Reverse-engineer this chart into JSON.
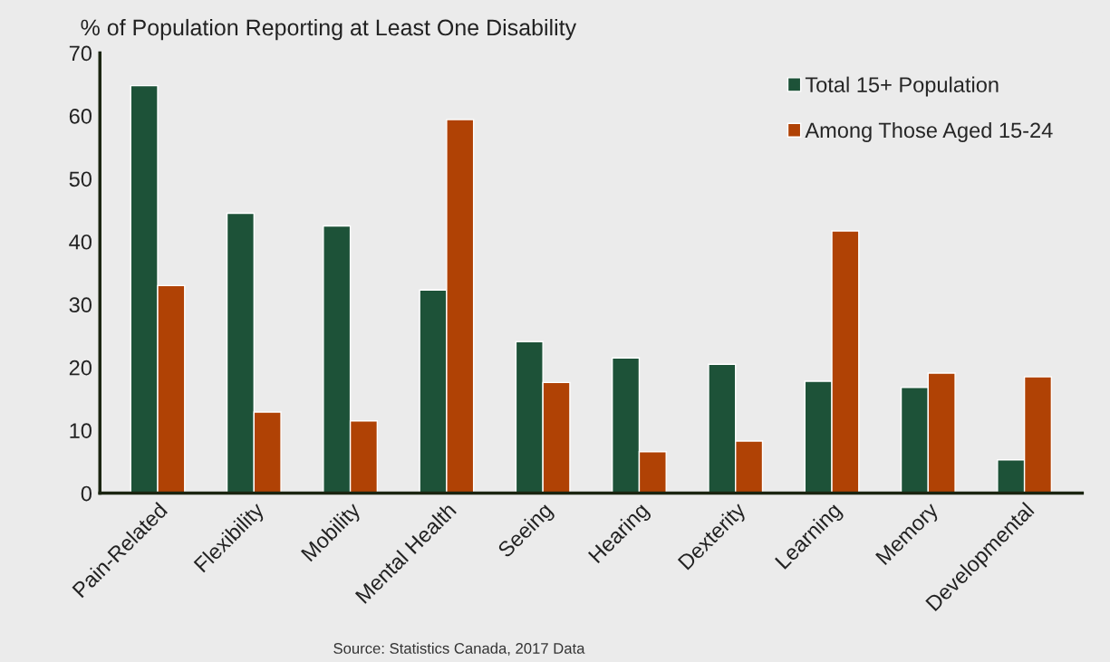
{
  "chart_data": {
    "type": "bar",
    "title": "% of Population Reporting at Least One Disability",
    "categories": [
      "Pain-Related",
      "Flexibility",
      "Mobility",
      "Mental Health",
      "Seeing",
      "Hearing",
      "Dexterity",
      "Learning",
      "Memory",
      "Developmental"
    ],
    "series": [
      {
        "name": "Total 15+ Population",
        "color": "#1d5238",
        "values": [
          64.8,
          44.5,
          42.5,
          32.3,
          24.1,
          21.5,
          20.5,
          17.8,
          16.8,
          5.3
        ]
      },
      {
        "name": "Among Those Aged 15-24",
        "color": "#b04205",
        "values": [
          33.0,
          12.9,
          11.5,
          59.4,
          17.6,
          6.6,
          8.3,
          41.7,
          19.1,
          18.5
        ]
      }
    ],
    "ylim": [
      0,
      70
    ],
    "yticks": [
      0,
      10,
      20,
      30,
      40,
      50,
      60,
      70
    ],
    "grid": false,
    "legend": "top right",
    "annotations": [
      "Source: Statistics Canada, 2017 Data"
    ]
  }
}
